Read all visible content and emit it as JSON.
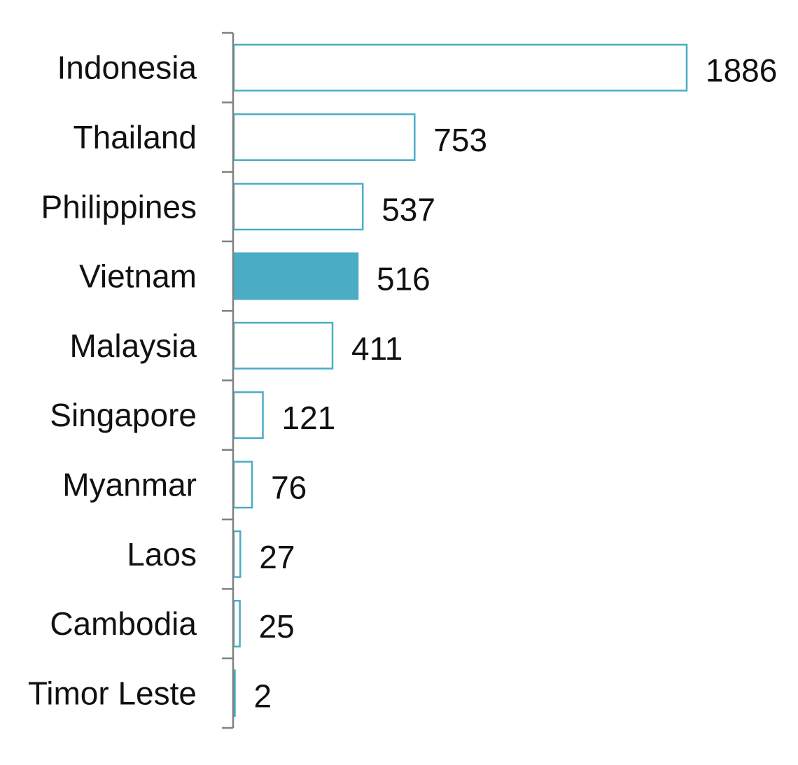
{
  "chart_data": {
    "type": "bar",
    "orientation": "horizontal",
    "categories": [
      "Indonesia",
      "Thailand",
      "Philippines",
      "Vietnam",
      "Malaysia",
      "Singapore",
      "Myanmar",
      "Laos",
      "Cambodia",
      "Timor Leste"
    ],
    "values": [
      1886,
      753,
      537,
      516,
      411,
      121,
      76,
      27,
      25,
      2
    ],
    "value_labels": [
      "1886",
      "753",
      "537",
      "516",
      "411",
      "121",
      "76",
      "27",
      "25",
      "2"
    ],
    "highlight": "Vietnam",
    "title": "",
    "xlabel": "",
    "ylabel": "",
    "xlim": [
      0,
      1886
    ],
    "grid": false,
    "legend": "none",
    "colors": {
      "bar_outline": "#4BACC6",
      "bar_fill": "#FFFFFF",
      "highlight_fill": "#4BACC6",
      "axis": "#808080",
      "text": "#111111"
    }
  }
}
